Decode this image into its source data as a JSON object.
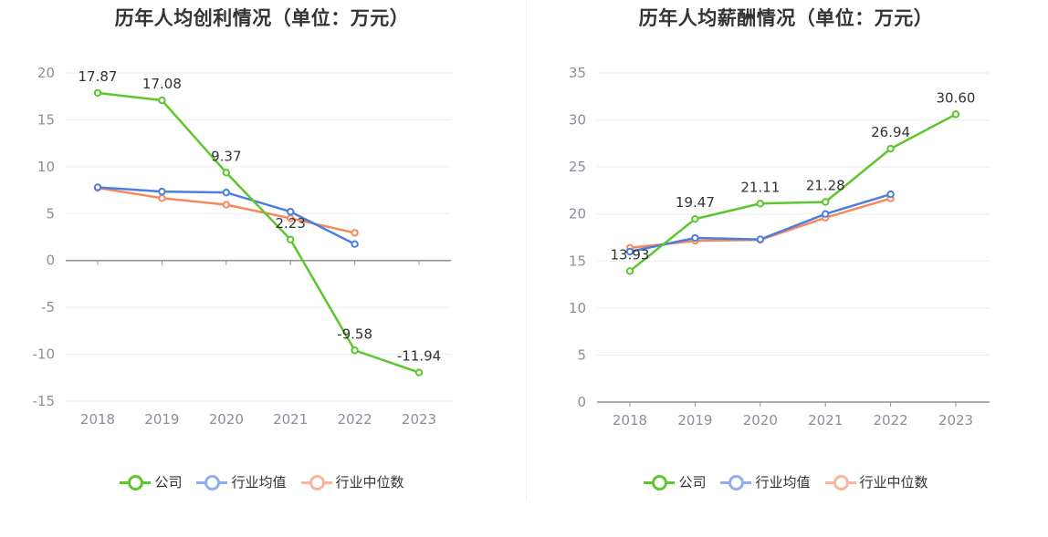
{
  "colors": {
    "company": "#5cc72c",
    "avg": "#4a7fe0",
    "median": "#f5895b",
    "avg_legend": "#8eb0ea",
    "median_legend": "#f7b59b"
  },
  "chart_data": [
    {
      "type": "line",
      "title": "历年人均创利情况（单位：万元）",
      "categories": [
        "2018",
        "2019",
        "2020",
        "2021",
        "2022",
        "2023"
      ],
      "ylim": [
        -15,
        20
      ],
      "yticks": [
        20,
        15,
        10,
        5,
        0,
        -5,
        -10,
        -15
      ],
      "grid": true,
      "legend_position": "bottom",
      "series": [
        {
          "name": "公司",
          "values": [
            17.87,
            17.08,
            9.37,
            2.23,
            -9.58,
            -11.94
          ],
          "labels": [
            "17.87",
            "17.08",
            "9.37",
            "2.23",
            "-9.58",
            "-11.94"
          ]
        },
        {
          "name": "行业均值",
          "values": [
            7.8,
            7.35,
            7.25,
            5.2,
            1.75,
            null
          ]
        },
        {
          "name": "行业中位数",
          "values": [
            7.75,
            6.65,
            5.95,
            4.5,
            2.95,
            null
          ]
        }
      ]
    },
    {
      "type": "line",
      "title": "历年人均薪酬情况（单位：万元）",
      "categories": [
        "2018",
        "2019",
        "2020",
        "2021",
        "2022",
        "2023"
      ],
      "ylim": [
        0,
        35
      ],
      "yticks": [
        35,
        30,
        25,
        20,
        15,
        10,
        5,
        0
      ],
      "grid": true,
      "legend_position": "bottom",
      "series": [
        {
          "name": "公司",
          "values": [
            13.93,
            19.47,
            21.11,
            21.28,
            26.94,
            30.6
          ],
          "labels": [
            "13.93",
            "19.47",
            "21.11",
            "21.28",
            "26.94",
            "30.60"
          ]
        },
        {
          "name": "行业均值",
          "values": [
            16.0,
            17.45,
            17.3,
            20.0,
            22.1,
            null
          ]
        },
        {
          "name": "行业中位数",
          "values": [
            16.4,
            17.15,
            17.25,
            19.6,
            21.65,
            null
          ]
        }
      ]
    }
  ]
}
